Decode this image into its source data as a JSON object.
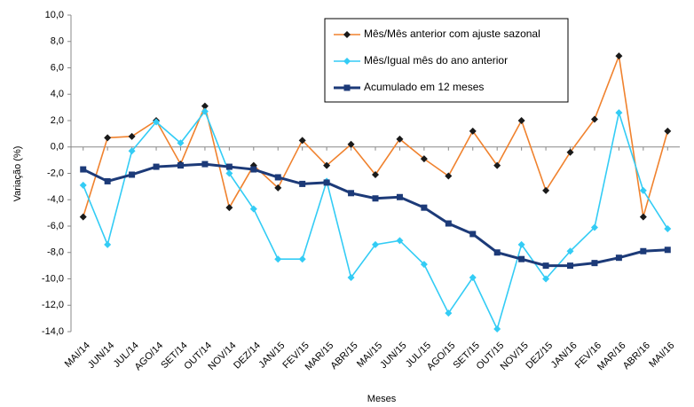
{
  "chart_data": {
    "type": "line",
    "y_label": "Variação (%)",
    "x_label": "Meses",
    "categories": [
      "MAI/14",
      "JUN/14",
      "JUL/14",
      "AGO/14",
      "SET/14",
      "OUT/14",
      "NOV/14",
      "DEZ/14",
      "JAN/15",
      "FEV/15",
      "MAR/15",
      "ABR/15",
      "MAI/15",
      "JUN/15",
      "JUL/15",
      "AGO/15",
      "SET/15",
      "OUT/15",
      "NOV/15",
      "DEZ/15",
      "JAN/16",
      "FEV/16",
      "MAR/16",
      "ABR/16",
      "MAI/16"
    ],
    "series": [
      {
        "name": "Mês/Mês anterior com ajuste sazonal",
        "color": "#f0822e",
        "marker": "diamond",
        "marker_color": "#1a1a1a",
        "values": [
          -5.3,
          0.7,
          0.8,
          2.0,
          -1.3,
          3.1,
          -4.6,
          -1.4,
          -3.1,
          0.5,
          -1.4,
          0.2,
          -2.1,
          0.6,
          -0.9,
          -2.2,
          1.2,
          -1.4,
          2.0,
          -3.3,
          -0.4,
          2.1,
          6.9,
          -5.3,
          1.2
        ]
      },
      {
        "name": "Mês/Igual mês do ano anterior",
        "color": "#33ccf5",
        "marker": "diamond",
        "marker_color": "#33ccf5",
        "values": [
          -2.9,
          -7.4,
          -0.3,
          1.9,
          0.3,
          2.7,
          -2.0,
          -4.7,
          -8.5,
          -8.5,
          -2.6,
          -9.9,
          -7.4,
          -7.1,
          -8.9,
          -12.6,
          -9.9,
          -13.8,
          -7.4,
          -10.0,
          -7.9,
          -6.1,
          2.6,
          -3.3,
          -6.2
        ]
      },
      {
        "name": "Acumulado em 12 meses",
        "color": "#1c3a78",
        "marker": "square",
        "marker_color": "#1c3a78",
        "values": [
          -1.7,
          -2.6,
          -2.1,
          -1.5,
          -1.4,
          -1.3,
          -1.5,
          -1.7,
          -2.3,
          -2.8,
          -2.7,
          -3.5,
          -3.9,
          -3.8,
          -4.6,
          -5.8,
          -6.6,
          -8.0,
          -8.5,
          -9.0,
          -9.0,
          -8.8,
          -8.4,
          -7.9,
          -7.8
        ]
      }
    ],
    "ylim": [
      -14,
      10
    ],
    "yticks": [
      {
        "value": 10,
        "label": "10,0"
      },
      {
        "value": 8,
        "label": "8,0"
      },
      {
        "value": 6,
        "label": "6,0"
      },
      {
        "value": 4,
        "label": "4,0"
      },
      {
        "value": 2,
        "label": "2,0"
      },
      {
        "value": 0,
        "label": "0,0"
      },
      {
        "value": -2,
        "label": "-2,0"
      },
      {
        "value": -4,
        "label": "-4,0"
      },
      {
        "value": -6,
        "label": "-6,0"
      },
      {
        "value": -8,
        "label": "-8,0"
      },
      {
        "value": -10,
        "label": "-10,0"
      },
      {
        "value": -12,
        "label": "-12,0"
      },
      {
        "value": -14,
        "label": "-14,0"
      }
    ],
    "grid": false,
    "legend": "upper-right"
  }
}
